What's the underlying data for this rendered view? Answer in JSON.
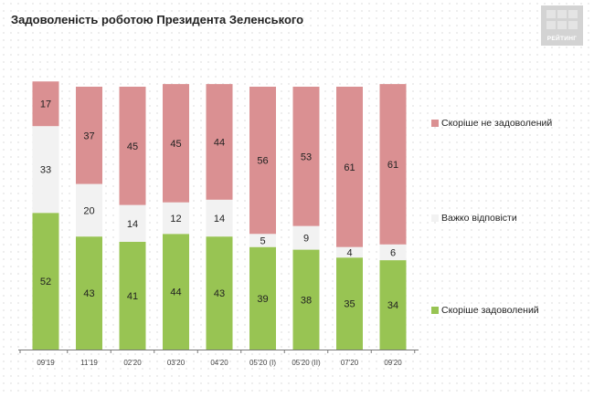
{
  "title": "Задоволеність роботою Президента Зеленського",
  "logo": {
    "text": "РЕЙТИНГ"
  },
  "colors": {
    "satisfied": "#98c453",
    "hard_to_say": "#f2f2f2",
    "not_satisfied": "#da9092",
    "axis": "#7a7a7a",
    "label": "#222222"
  },
  "chart_data": {
    "type": "bar",
    "stacked": true,
    "title": "Задоволеність роботою Президента Зеленського",
    "categories": [
      "09'19",
      "11'19",
      "02'20",
      "03'20",
      "04'20",
      "05'20 (I)",
      "05'20 (II)",
      "07'20",
      "09'20"
    ],
    "series": [
      {
        "name": "Скоріше задоволений",
        "values": [
          52,
          43,
          41,
          44,
          43,
          39,
          38,
          35,
          34
        ]
      },
      {
        "name": "Важко відповісти",
        "values": [
          33,
          20,
          14,
          12,
          14,
          5,
          9,
          4,
          6
        ]
      },
      {
        "name": "Скоріше не задоволений",
        "values": [
          17,
          37,
          45,
          45,
          44,
          56,
          53,
          61,
          61
        ]
      }
    ],
    "legend_position": "right",
    "grid": false,
    "ylim": [
      0,
      100
    ]
  }
}
